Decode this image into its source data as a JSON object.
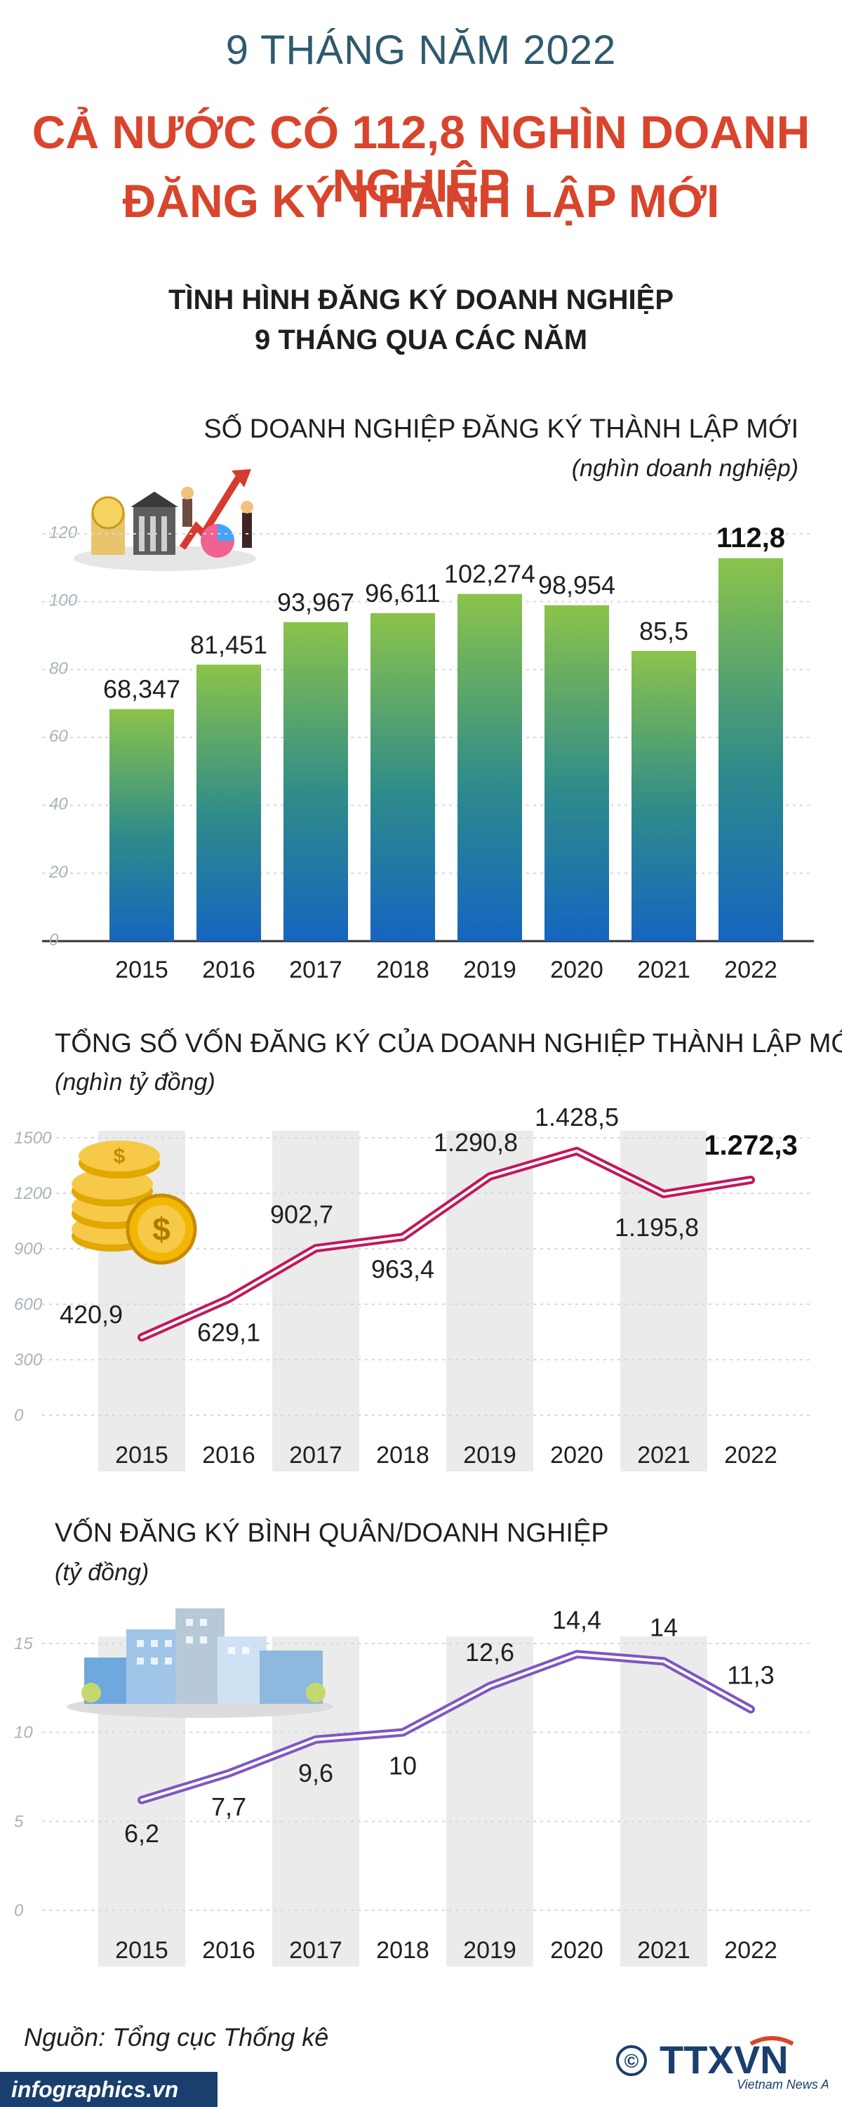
{
  "header": {
    "period": "9 THÁNG NĂM 2022",
    "headline_line1": "CẢ NƯỚC CÓ 112,8 NGHÌN DOANH NGHIỆP",
    "headline_line2": "ĐĂNG KÝ THÀNH LẬP MỚI",
    "section_line1": "TÌNH HÌNH ĐĂNG KÝ DOANH NGHIỆP",
    "section_line2": "9 THÁNG QUA CÁC NĂM"
  },
  "colors": {
    "headline": "#d8452c",
    "period": "#2e5a6e",
    "bar_top": "#8bc34a",
    "bar_bottom": "#1565c0",
    "line_capital": "#c2185b",
    "line_avg": "#7e57c2",
    "band": "#ebebeb",
    "footer": "#1a3f6e"
  },
  "chart_data": [
    {
      "type": "bar",
      "title": "SỐ DOANH NGHIỆP ĐĂNG KÝ THÀNH LẬP MỚI",
      "unit": "(nghìn doanh nghiệp)",
      "categories": [
        "2015",
        "2016",
        "2017",
        "2018",
        "2019",
        "2020",
        "2021",
        "2022"
      ],
      "values": [
        68.347,
        81.451,
        93.967,
        96.611,
        102.274,
        98.954,
        85.5,
        112.8
      ],
      "labels": [
        "68,347",
        "81,451",
        "93,967",
        "96,611",
        "102,274",
        "98,954",
        "85,5",
        "112,8"
      ],
      "highlight_index": 7,
      "yticks": [
        "0",
        "20",
        "40",
        "60",
        "80",
        "100",
        "120"
      ],
      "ylim": [
        0,
        120
      ],
      "grid": true,
      "icon": "business-investment-illustration"
    },
    {
      "type": "line",
      "title": "TỔNG SỐ VỐN ĐĂNG KÝ CỦA DOANH NGHIỆP THÀNH LẬP MỚI",
      "unit": "(nghìn tỷ đồng)",
      "categories": [
        "2015",
        "2016",
        "2017",
        "2018",
        "2019",
        "2020",
        "2021",
        "2022"
      ],
      "values": [
        420.9,
        629.1,
        902.7,
        963.4,
        1290.8,
        1428.5,
        1195.8,
        1272.3
      ],
      "labels": [
        "420,9",
        "629,1",
        "902,7",
        "963,4",
        "1.290,8",
        "1.428,5",
        "1.195,8",
        "1.272,3"
      ],
      "highlight_index": 7,
      "yticks": [
        "0",
        "300",
        "600",
        "900",
        "1200",
        "1500"
      ],
      "ylim": [
        0,
        1500
      ],
      "grid": true,
      "icon": "gold-coins-icon"
    },
    {
      "type": "line",
      "title": "VỐN ĐĂNG KÝ BÌNH QUÂN/DOANH NGHIỆP",
      "unit": "(tỷ đồng)",
      "categories": [
        "2015",
        "2016",
        "2017",
        "2018",
        "2019",
        "2020",
        "2021",
        "2022"
      ],
      "values": [
        6.2,
        7.7,
        9.6,
        10,
        12.6,
        14.4,
        14,
        11.3
      ],
      "labels": [
        "6,2",
        "7,7",
        "9,6",
        "10",
        "12,6",
        "14,4",
        "14",
        "11,3"
      ],
      "yticks": [
        "0",
        "5",
        "10",
        "15"
      ],
      "ylim": [
        0,
        15
      ],
      "grid": true,
      "icon": "city-buildings-icon"
    }
  ],
  "footer": {
    "source": "Nguồn: Tổng cục Thống kê",
    "site": "infographics.vn",
    "copyright_symbol": "©",
    "agency_logo": "TTXVN",
    "agency_sub": "Vietnam News Agency"
  }
}
